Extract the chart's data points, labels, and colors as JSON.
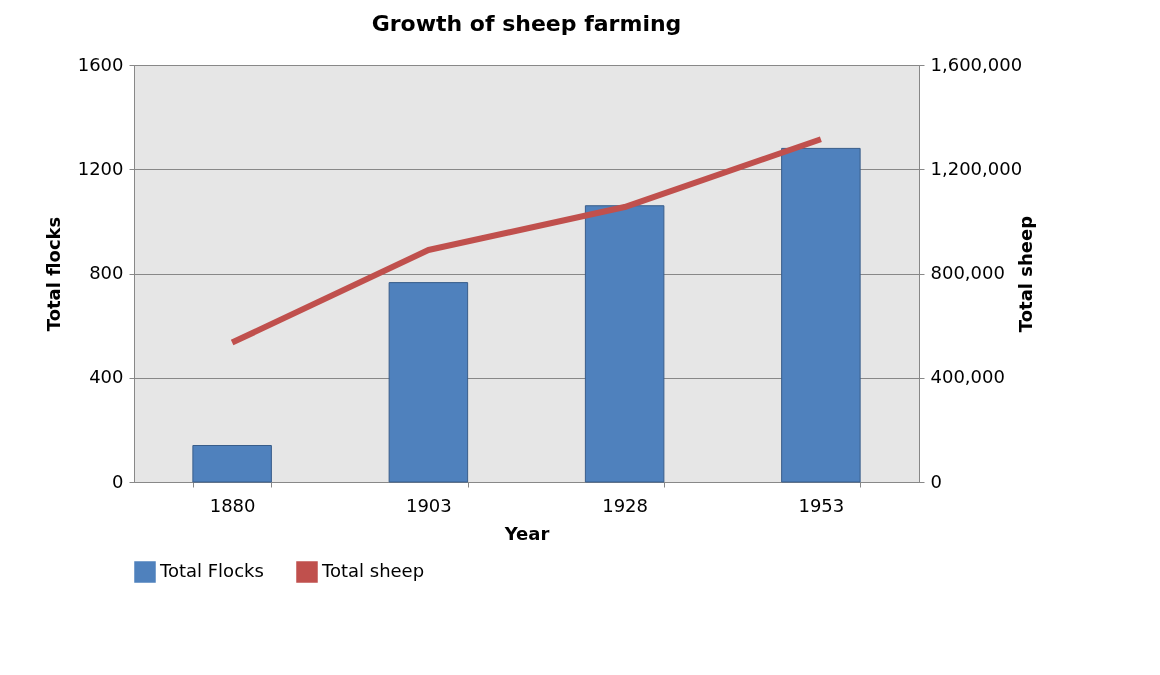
{
  "chart_data": {
    "type": "bar",
    "title": "Growth of sheep farming",
    "xlabel": "Year",
    "ylabel": "Total flocks",
    "y2label": "Total sheep",
    "categories": [
      "1880",
      "1903",
      "1928",
      "1953"
    ],
    "series": [
      {
        "name": "Total Flocks",
        "color": "#4f81bd",
        "values": [
          140,
          765,
          1060,
          1280
        ]
      },
      {
        "name": "Total sheep",
        "type": "line",
        "axis": "y2",
        "color": "#c0504d",
        "values": [
          535000,
          890000,
          1055000,
          1315000
        ]
      }
    ],
    "ylim": [
      0,
      1600
    ],
    "yticks": [
      0,
      400,
      800,
      1200,
      1600
    ],
    "y2lim": [
      0,
      1600000
    ],
    "y2ticks": [
      0,
      {
        "value": 400000,
        "label": "400,000"
      },
      {
        "value": 800000,
        "label": "800,000"
      },
      {
        "value": 1200000,
        "label": "1,200,000"
      },
      {
        "value": 1600000,
        "label": "1,600,000"
      }
    ],
    "grid": "y",
    "legend": "bottom",
    "marker": "none",
    "line_style": "solid"
  }
}
